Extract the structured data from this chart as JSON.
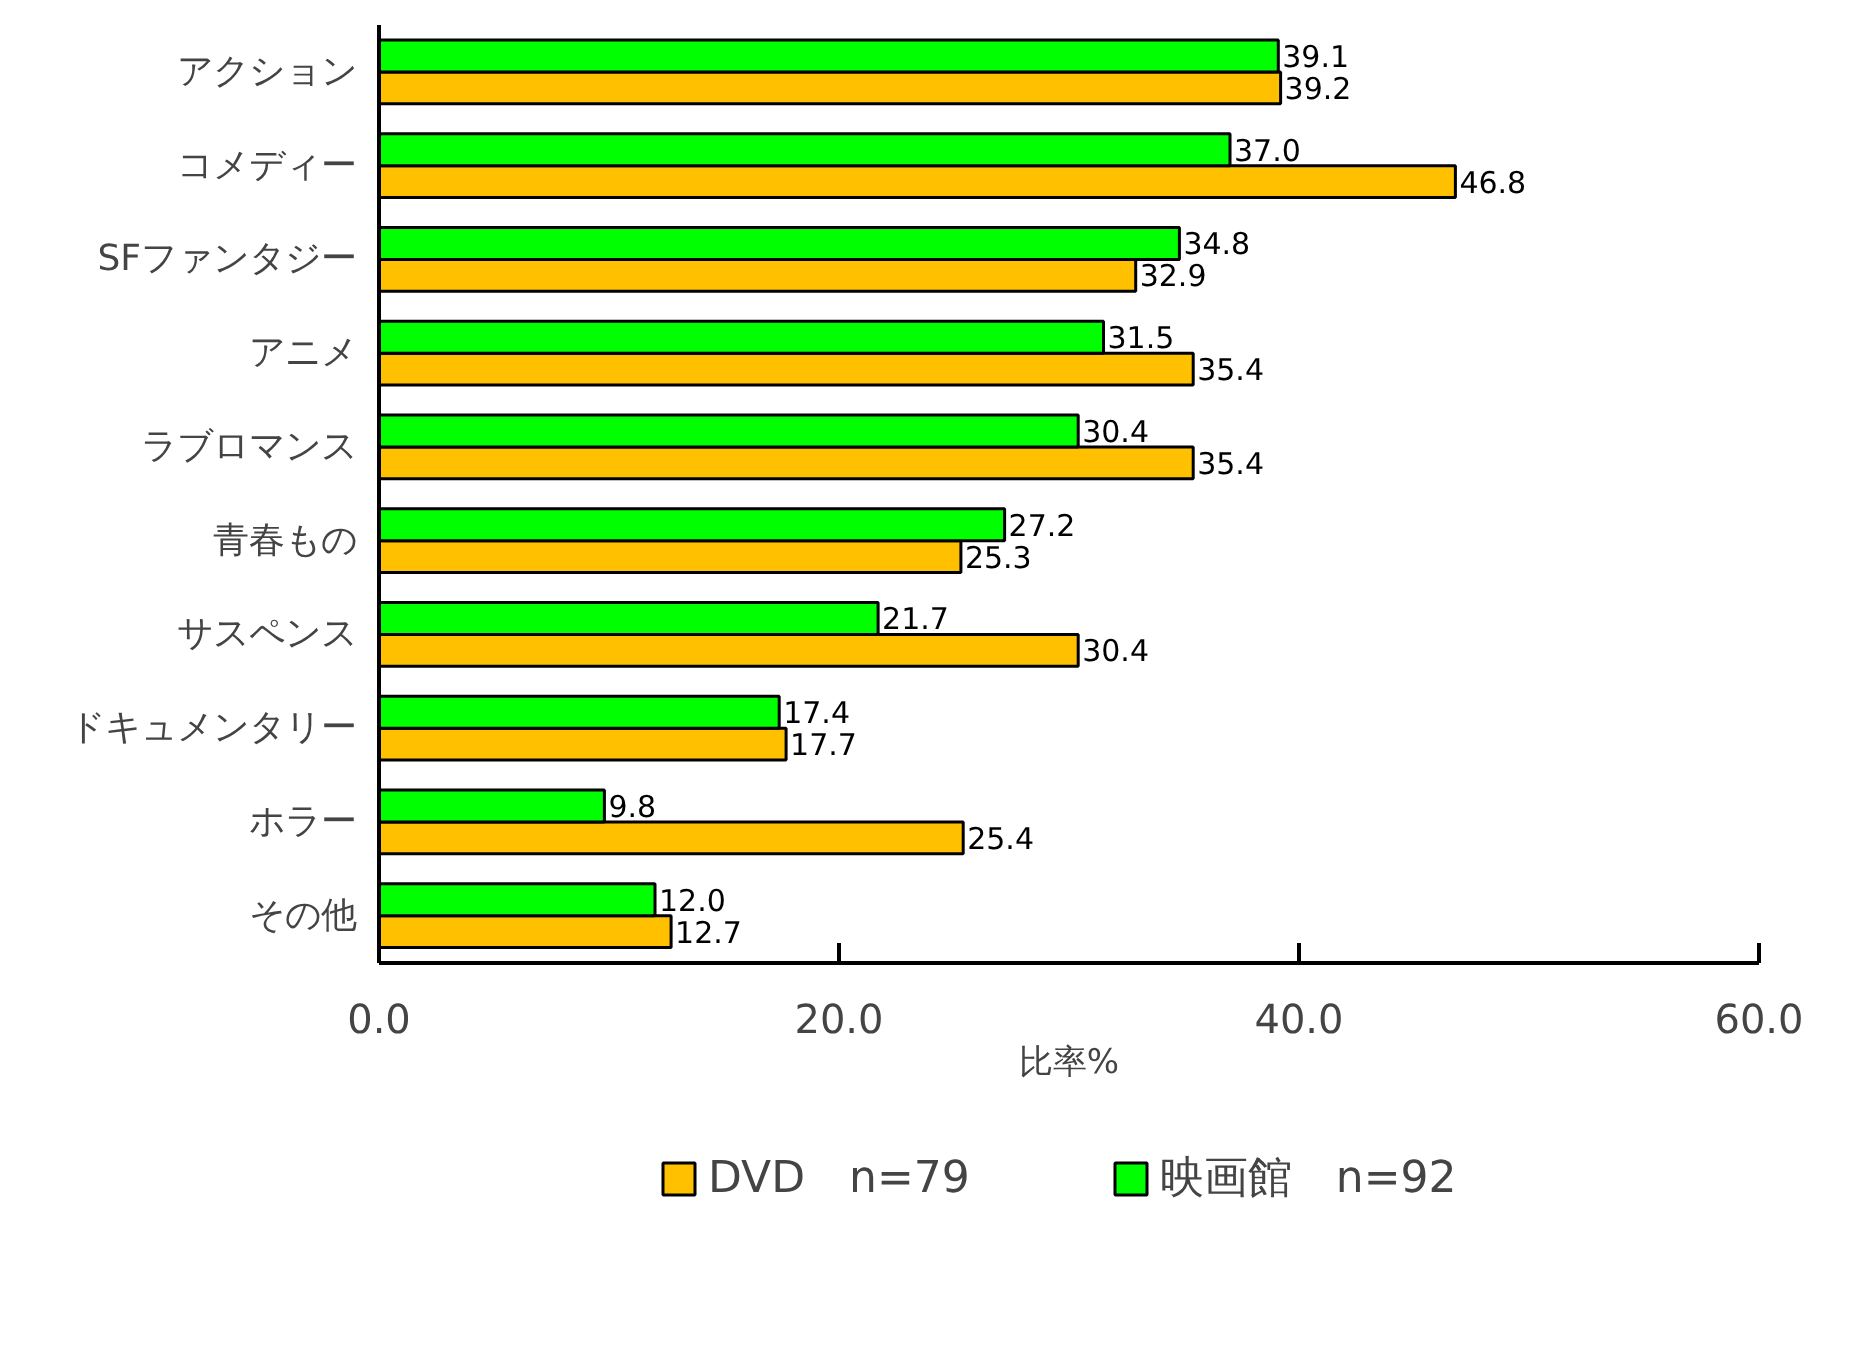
{
  "chart_data": {
    "type": "bar",
    "orientation": "horizontal",
    "categories": [
      "アクション",
      "コメディー",
      "SFファンタジー",
      "アニメ",
      "ラブロマンス",
      "青春もの",
      "サスペンス",
      "ドキュメンタリー",
      "ホラー",
      "その他"
    ],
    "series": [
      {
        "name": "DVD　n=79",
        "color": "#ffc000",
        "values": [
          39.2,
          46.8,
          32.9,
          35.4,
          35.4,
          25.3,
          30.4,
          17.7,
          25.4,
          12.7
        ],
        "value_labels": [
          "39.2",
          "46.8",
          "32.9",
          "35.4",
          "35.4",
          "25.3",
          "30.4",
          "17.7",
          "25.4",
          "12.7"
        ]
      },
      {
        "name": "映画館　n=92",
        "color": "#00ff00",
        "values": [
          39.1,
          37.0,
          34.8,
          31.5,
          30.4,
          27.2,
          21.7,
          17.4,
          9.8,
          12.0
        ],
        "value_labels": [
          "39.1",
          "37.0",
          "34.8",
          "31.5",
          "30.4",
          "27.2",
          "21.7",
          "17.4",
          "9.8",
          "12.0"
        ]
      }
    ],
    "xlabel": "比率%",
    "xlim": [
      0,
      60
    ],
    "xticks": [
      {
        "value": 0,
        "label": "0.0"
      },
      {
        "value": 20,
        "label": "20.0"
      },
      {
        "value": 40,
        "label": "40.0"
      },
      {
        "value": 60,
        "label": "60.0"
      }
    ],
    "grid": false,
    "legend": "bottom"
  }
}
